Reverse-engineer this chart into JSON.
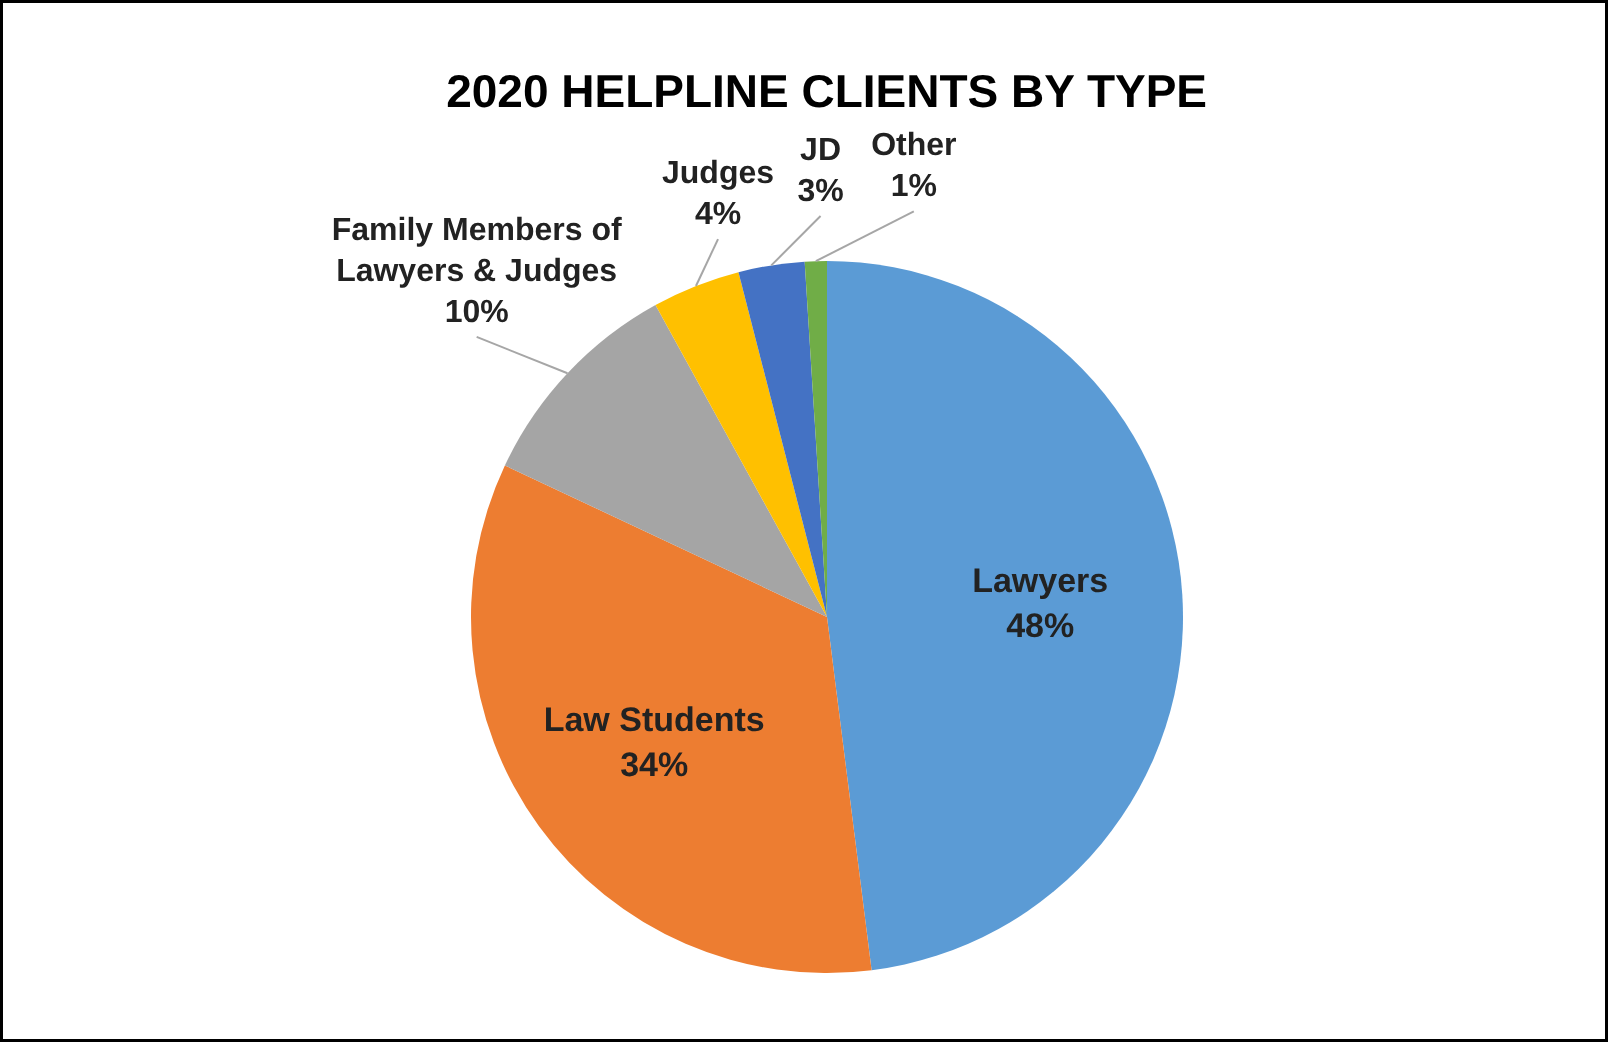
{
  "chart_data": {
    "type": "pie",
    "title": "2020 HELPLINE CLIENTS BY TYPE",
    "categories": [
      "Lawyers",
      "Law Students",
      "Family Members of Lawyers & Judges",
      "Judges",
      "JD",
      "Other"
    ],
    "values": [
      48,
      34,
      10,
      4,
      3,
      1
    ],
    "colors": [
      "#5b9bd5",
      "#ed7d31",
      "#a5a5a5",
      "#ffc000",
      "#4472c4",
      "#70ad47"
    ],
    "value_labels": [
      "48%",
      "34%",
      "10%",
      "4%",
      "3%",
      "1%"
    ],
    "legend": false
  }
}
